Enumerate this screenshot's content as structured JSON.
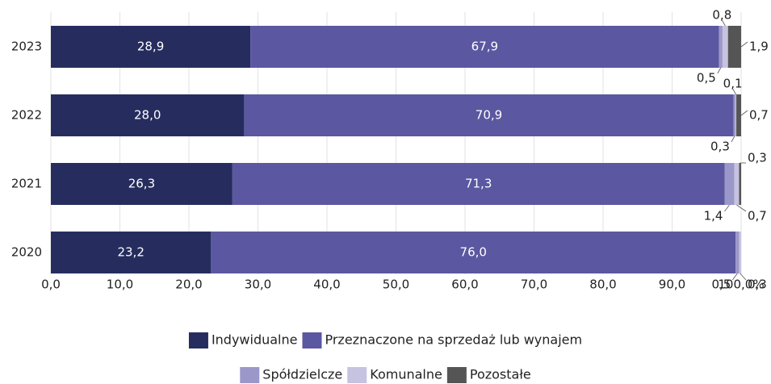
{
  "chart_data": {
    "type": "stacked_barh",
    "categories": [
      "2023",
      "2022",
      "2021",
      "2020"
    ],
    "series": [
      {
        "name": "Indywidualne",
        "color": "#262d5e",
        "values": [
          28.9,
          28.0,
          26.3,
          23.2
        ],
        "value_labels": [
          "28,9",
          "28,0",
          "26,3",
          "23,2"
        ]
      },
      {
        "name": "Przeznaczone na sprzedaż lub wynajem",
        "color": "#5b57a0",
        "values": [
          67.9,
          70.9,
          71.3,
          76.0
        ],
        "value_labels": [
          "67,9",
          "70,9",
          "71,3",
          "76,0"
        ]
      },
      {
        "name": "Spółdzielcze",
        "color": "#9b97c9",
        "values": [
          0.5,
          0.3,
          1.4,
          0.5
        ],
        "value_labels": [
          "0,5",
          "0,3",
          "1,4",
          "0,5"
        ]
      },
      {
        "name": "Komunalne",
        "color": "#c5c3e0",
        "values": [
          0.8,
          0.1,
          0.7,
          0.3
        ],
        "value_labels": [
          "0,8",
          "0,1",
          "0,7",
          "0,3"
        ]
      },
      {
        "name": "Pozostałe",
        "color": "#555555",
        "values": [
          1.9,
          0.7,
          0.3,
          null
        ],
        "value_labels": [
          "1,9",
          "0,7",
          "0,3",
          null
        ]
      }
    ],
    "xlim": [
      0,
      100
    ],
    "xticks": [
      {
        "value": 0,
        "label": "0,0"
      },
      {
        "value": 10,
        "label": "10,0"
      },
      {
        "value": 20,
        "label": "20,0"
      },
      {
        "value": 30,
        "label": "30,0"
      },
      {
        "value": 40,
        "label": "40,0"
      },
      {
        "value": 50,
        "label": "50,0"
      },
      {
        "value": 60,
        "label": "60,0"
      },
      {
        "value": 70,
        "label": "70,0"
      },
      {
        "value": 80,
        "label": "80,0"
      },
      {
        "value": 90,
        "label": "90,0"
      },
      {
        "value": 100,
        "label": "100,0%"
      }
    ],
    "grid": true,
    "legend": "bottom"
  }
}
